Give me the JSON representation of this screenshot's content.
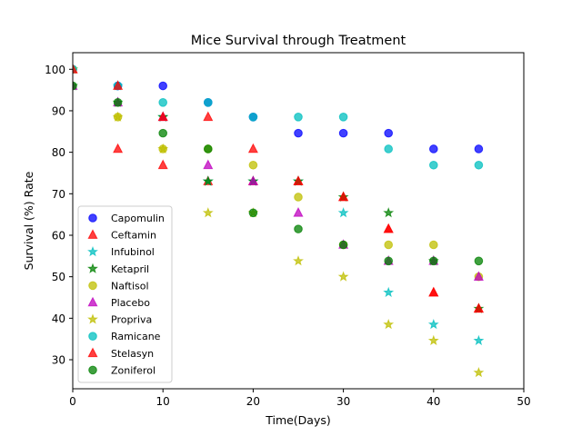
{
  "chart_data": {
    "type": "scatter",
    "title": "Mice Survival through Treatment",
    "xlabel": "Time(Days)",
    "ylabel": "Survival (%) Rate",
    "xlim": [
      0,
      50
    ],
    "ylim": [
      23,
      104
    ],
    "xticks": [
      0,
      10,
      20,
      30,
      40,
      50
    ],
    "yticks": [
      30,
      40,
      50,
      60,
      70,
      80,
      90,
      100
    ],
    "grid": false,
    "legend_position": "lower-left",
    "x": [
      0,
      5,
      10,
      15,
      20,
      25,
      30,
      35,
      40,
      45
    ],
    "series": [
      {
        "name": "Capomulin",
        "marker": "circle",
        "color": "#0000ff",
        "values": [
          100,
          96,
          96,
          92,
          88.5,
          84.6,
          84.6,
          84.6,
          80.8,
          80.8
        ]
      },
      {
        "name": "Ceftamin",
        "marker": "triangle",
        "color": "#ff0000",
        "values": [
          100,
          80.8,
          76.9,
          73,
          73,
          73,
          69.2,
          61.5,
          46.2,
          42.3
        ]
      },
      {
        "name": "Infubinol",
        "marker": "star",
        "color": "#00bfbf",
        "values": [
          100,
          96,
          88.5,
          73,
          73,
          73,
          65.4,
          46.2,
          38.5,
          34.6
        ]
      },
      {
        "name": "Ketapril",
        "marker": "star",
        "color": "#008000",
        "values": [
          96,
          92,
          88.5,
          73,
          73,
          73,
          69.2,
          65.4,
          53.8,
          42.3
        ]
      },
      {
        "name": "Naftisol",
        "marker": "circle",
        "color": "#bfbf00",
        "values": [
          100,
          88.5,
          80.8,
          80.8,
          76.9,
          69.2,
          57.7,
          57.7,
          57.7,
          50
        ]
      },
      {
        "name": "Placebo",
        "marker": "triangle",
        "color": "#bf00bf",
        "values": [
          96,
          92,
          88.5,
          76.9,
          73,
          65.4,
          57.7,
          53.8,
          53.8,
          50
        ]
      },
      {
        "name": "Propriva",
        "marker": "star",
        "color": "#bfbf00",
        "values": [
          100,
          88.5,
          80.8,
          65.4,
          65.4,
          53.8,
          50,
          38.5,
          34.6,
          26.9
        ]
      },
      {
        "name": "Ramicane",
        "marker": "circle",
        "color": "#00bfbf",
        "values": [
          100,
          96,
          92,
          92,
          88.5,
          88.5,
          88.5,
          80.8,
          76.9,
          76.9
        ]
      },
      {
        "name": "Stelasyn",
        "marker": "triangle",
        "color": "#ff0000",
        "values": [
          100,
          96,
          88.5,
          88.5,
          80.8,
          73,
          69.2,
          61.5,
          46.2,
          42.3
        ]
      },
      {
        "name": "Zoniferol",
        "marker": "circle",
        "color": "#008000",
        "values": [
          96,
          92,
          84.6,
          80.8,
          65.4,
          61.5,
          57.7,
          53.8,
          53.8,
          53.8
        ]
      }
    ]
  }
}
